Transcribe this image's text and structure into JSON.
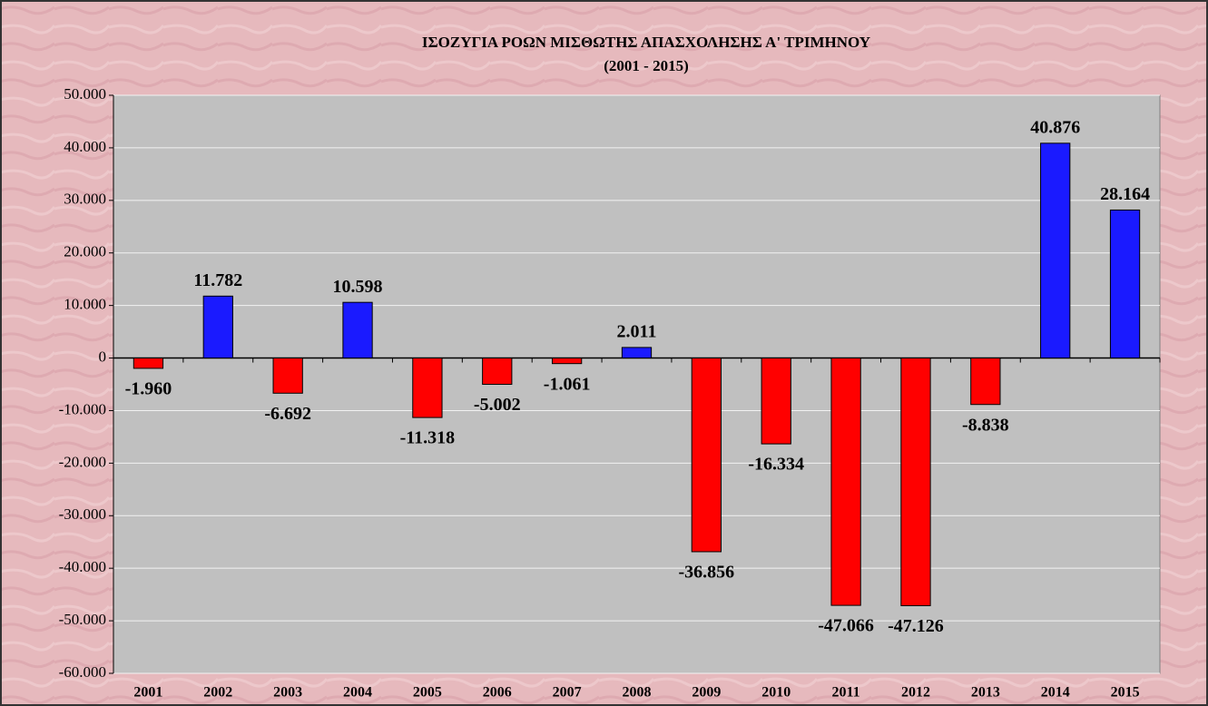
{
  "chart_data": {
    "type": "bar",
    "title": "ΙΣΟΖΥΓΙΑ ΡΟΩΝ ΜΙΣΘΩΤΗΣ ΑΠΑΣΧΟΛΗΣΗΣ Α' ΤΡΙΜΗΝΟΥ",
    "subtitle": "(2001 - 2015)",
    "categories": [
      "2001",
      "2002",
      "2003",
      "2004",
      "2005",
      "2006",
      "2007",
      "2008",
      "2009",
      "2010",
      "2011",
      "2012",
      "2013",
      "2014",
      "2015"
    ],
    "values": [
      -1960,
      11782,
      -6692,
      10598,
      -11318,
      -5002,
      -1061,
      2011,
      -36856,
      -16334,
      -47066,
      -47126,
      -8838,
      40876,
      28164
    ],
    "value_labels": [
      "-1.960",
      "11.782",
      "-6.692",
      "10.598",
      "-11.318",
      "-5.002",
      "-1.061",
      "2.011",
      "-36.856",
      "-16.334",
      "-47.066",
      "-47.126",
      "-8.838",
      "40.876",
      "28.164"
    ],
    "positive_color": "#1a1aff",
    "negative_color": "#ff0000",
    "ylim": [
      -60000,
      50000
    ],
    "yticks": [
      {
        "value": -60000,
        "label": "-60.000"
      },
      {
        "value": -50000,
        "label": "-50.000"
      },
      {
        "value": -40000,
        "label": "-40.000"
      },
      {
        "value": -30000,
        "label": "-30.000"
      },
      {
        "value": -20000,
        "label": "-20.000"
      },
      {
        "value": -10000,
        "label": "-10.000"
      },
      0,
      {
        "value": 10000,
        "label": "10.000"
      },
      {
        "value": 20000,
        "label": "20.000"
      },
      {
        "value": 30000,
        "label": "30.000"
      },
      {
        "value": 40000,
        "label": "40.000"
      },
      {
        "value": 50000,
        "label": "50.000"
      }
    ],
    "grid": true
  }
}
